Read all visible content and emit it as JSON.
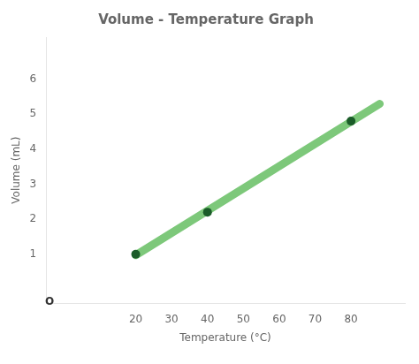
{
  "chart_data": {
    "type": "scatter",
    "title": "Volume - Temperature Graph",
    "x_label": "Temperature (°C)",
    "y_label": "Volume (mL)",
    "series": [
      {
        "type": "line",
        "color": "#7dc87a",
        "x": [
          20,
          88
        ],
        "values": [
          0.971429,
          5.294286
        ]
      },
      {
        "type": "scatter",
        "color": "#1a5c28",
        "x": [
          20,
          40,
          80
        ],
        "values": [
          1,
          2.2,
          4.8
        ]
      }
    ],
    "xlim": [
      -5,
      95
    ],
    "ylim": [
      -0.4,
      7.2
    ],
    "xticks": [
      20,
      30,
      40,
      50,
      60,
      70,
      80
    ],
    "yticks": [
      1,
      2,
      3,
      4,
      5,
      6
    ],
    "grid": false,
    "annotations": [
      {
        "text": "O",
        "x": -4,
        "y": -0.22
      }
    ]
  }
}
